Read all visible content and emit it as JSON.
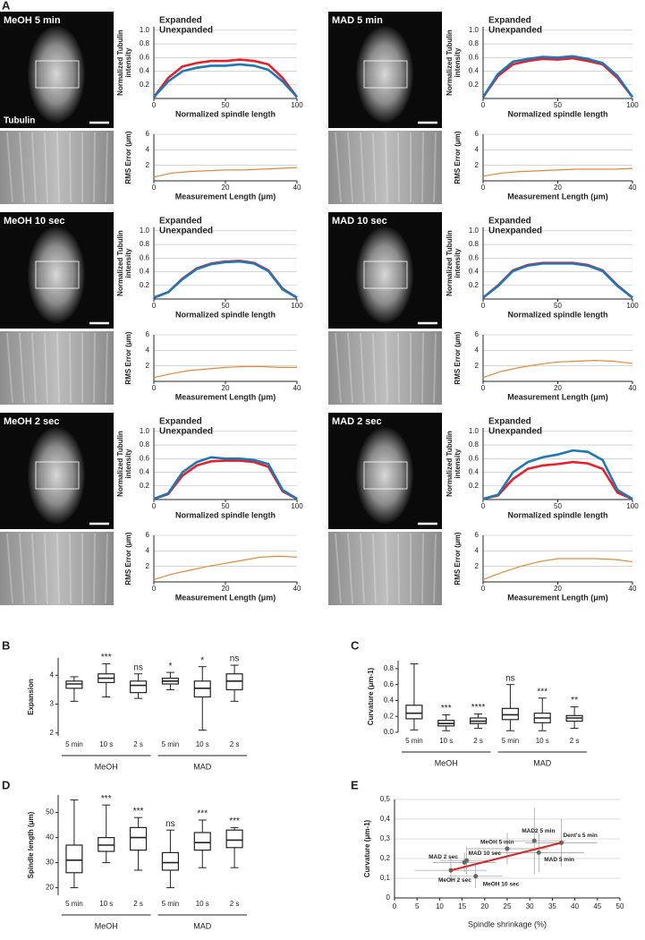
{
  "panel_labels": [
    "A",
    "B",
    "C",
    "D",
    "E"
  ],
  "images": [
    {
      "title": "MeOH 5 min",
      "stain": "Tubulin"
    },
    {
      "title": "MAD 5 min"
    },
    {
      "title": "MeOH 10 sec"
    },
    {
      "title": "MAD 10 sec"
    },
    {
      "title": "MeOH 2 sec"
    },
    {
      "title": "MAD 2 sec"
    }
  ],
  "chart_data": [
    {
      "type": "line",
      "xlabel": "Normalized spindle length",
      "ylabel": [
        "Normalized Tubulin",
        "intensity"
      ],
      "x": [
        0,
        10,
        20,
        30,
        40,
        50,
        60,
        70,
        80,
        90,
        100
      ],
      "series": [
        {
          "name": "Expanded",
          "color": "#e3222b",
          "values": [
            0.02,
            0.3,
            0.47,
            0.52,
            0.55,
            0.55,
            0.57,
            0.55,
            0.5,
            0.3,
            0.02
          ]
        },
        {
          "name": "Unexpanded",
          "color": "#1f77b4",
          "values": [
            0.02,
            0.25,
            0.4,
            0.45,
            0.48,
            0.48,
            0.5,
            0.48,
            0.42,
            0.25,
            0.02
          ]
        }
      ],
      "xlim": [
        0,
        100
      ],
      "ylim": [
        0,
        1.05
      ],
      "xticks": [
        0,
        50,
        100
      ],
      "yticks": [
        0.2,
        0.4,
        0.6,
        0.8,
        {
          "value": 1,
          "label": "1.0"
        }
      ],
      "grid": true
    },
    {
      "type": "line",
      "xlabel": "Normalized spindle length",
      "ylabel": [
        "Normalized Tubulin",
        "intensity"
      ],
      "x": [
        0,
        10,
        20,
        30,
        40,
        50,
        60,
        70,
        80,
        90,
        100
      ],
      "series": [
        {
          "name": "Expanded",
          "color": "#e3222b",
          "values": [
            0.02,
            0.33,
            0.5,
            0.55,
            0.58,
            0.57,
            0.59,
            0.55,
            0.5,
            0.3,
            0.02
          ]
        },
        {
          "name": "Unexpanded",
          "color": "#1f77b4",
          "values": [
            0.02,
            0.36,
            0.54,
            0.58,
            0.61,
            0.6,
            0.62,
            0.58,
            0.52,
            0.33,
            0.02
          ]
        }
      ],
      "xlim": [
        0,
        100
      ],
      "ylim": [
        0,
        1.05
      ],
      "xticks": [
        0,
        50,
        100
      ],
      "yticks": [
        0.2,
        0.4,
        0.6,
        0.8,
        {
          "value": 1,
          "label": "1.0"
        }
      ],
      "grid": true
    },
    {
      "type": "line",
      "xlabel": "Normalized spindle length",
      "ylabel": [
        "Normalized Tubulin",
        "intensity"
      ],
      "x": [
        0,
        10,
        20,
        30,
        40,
        50,
        60,
        70,
        80,
        90,
        100
      ],
      "series": [
        {
          "name": "Expanded",
          "color": "#e3222b",
          "values": [
            0.02,
            0.1,
            0.3,
            0.45,
            0.52,
            0.55,
            0.56,
            0.53,
            0.42,
            0.15,
            0.02
          ]
        },
        {
          "name": "Unexpanded",
          "color": "#1f77b4",
          "values": [
            0.02,
            0.1,
            0.29,
            0.44,
            0.51,
            0.54,
            0.55,
            0.52,
            0.41,
            0.14,
            0.02
          ]
        }
      ],
      "xlim": [
        0,
        100
      ],
      "ylim": [
        0,
        1.05
      ],
      "xticks": [
        0,
        50,
        100
      ],
      "yticks": [
        0.2,
        0.4,
        0.6,
        0.8,
        {
          "value": 1,
          "label": "1.0"
        }
      ],
      "grid": true
    },
    {
      "type": "line",
      "xlabel": "Normalized spindle length",
      "ylabel": [
        "Normalized Tubulin",
        "intensity"
      ],
      "x": [
        0,
        10,
        20,
        30,
        40,
        50,
        60,
        70,
        80,
        90,
        100
      ],
      "series": [
        {
          "name": "Expanded",
          "color": "#e3222b",
          "values": [
            0.02,
            0.2,
            0.42,
            0.5,
            0.53,
            0.53,
            0.53,
            0.5,
            0.42,
            0.2,
            0.02
          ]
        },
        {
          "name": "Unexpanded",
          "color": "#1f77b4",
          "values": [
            0.02,
            0.19,
            0.41,
            0.49,
            0.52,
            0.52,
            0.52,
            0.49,
            0.41,
            0.19,
            0.02
          ]
        }
      ],
      "xlim": [
        0,
        100
      ],
      "ylim": [
        0,
        1.05
      ],
      "xticks": [
        0,
        50,
        100
      ],
      "yticks": [
        0.2,
        0.4,
        0.6,
        0.8,
        {
          "value": 1,
          "label": "1.0"
        }
      ],
      "grid": true
    },
    {
      "type": "line",
      "xlabel": "Normalized spindle length",
      "ylabel": [
        "Normalized Tubulin",
        "intensity"
      ],
      "x": [
        0,
        10,
        20,
        30,
        40,
        50,
        60,
        70,
        80,
        90,
        100
      ],
      "series": [
        {
          "name": "Expanded",
          "color": "#e3222b",
          "values": [
            0.01,
            0.08,
            0.35,
            0.5,
            0.56,
            0.57,
            0.57,
            0.55,
            0.48,
            0.12,
            0.01
          ]
        },
        {
          "name": "Unexpanded",
          "color": "#1f77b4",
          "values": [
            0.01,
            0.09,
            0.4,
            0.55,
            0.62,
            0.6,
            0.6,
            0.58,
            0.52,
            0.14,
            0.01
          ]
        }
      ],
      "xlim": [
        0,
        100
      ],
      "ylim": [
        0,
        1.05
      ],
      "xticks": [
        0,
        50,
        100
      ],
      "yticks": [
        0.2,
        0.4,
        0.6,
        0.8,
        {
          "value": 1,
          "label": "1.0"
        }
      ],
      "grid": true
    },
    {
      "type": "line",
      "xlabel": "Normalized spindle length",
      "ylabel": [
        "Normalized Tubulin",
        "intensity"
      ],
      "x": [
        0,
        10,
        20,
        30,
        40,
        50,
        60,
        70,
        80,
        90,
        100
      ],
      "series": [
        {
          "name": "Expanded",
          "color": "#e3222b",
          "values": [
            0.01,
            0.06,
            0.3,
            0.45,
            0.5,
            0.52,
            0.55,
            0.53,
            0.45,
            0.1,
            0.01
          ]
        },
        {
          "name": "Unexpanded",
          "color": "#1f77b4",
          "values": [
            0.01,
            0.07,
            0.4,
            0.55,
            0.62,
            0.66,
            0.72,
            0.7,
            0.58,
            0.14,
            0.01
          ]
        }
      ],
      "xlim": [
        0,
        100
      ],
      "ylim": [
        0,
        1.05
      ],
      "xticks": [
        0,
        50,
        100
      ],
      "yticks": [
        0.2,
        0.4,
        0.6,
        0.8,
        {
          "value": 1,
          "label": "1.0"
        }
      ],
      "grid": true
    },
    {
      "type": "line",
      "xlabel": "Measurement Length (μm)",
      "ylabel": "RMS Error (μm)",
      "x": [
        0,
        5,
        10,
        15,
        20,
        25,
        30,
        35,
        40
      ],
      "series": [
        {
          "color": "#e08a3c",
          "values": [
            0.5,
            1.0,
            1.2,
            1.3,
            1.4,
            1.4,
            1.5,
            1.6,
            1.7
          ]
        }
      ],
      "xlim": [
        0,
        40
      ],
      "ylim": [
        0,
        6
      ],
      "xticks": [
        0,
        20,
        40
      ],
      "yticks": [
        2,
        4,
        6
      ],
      "grid": true
    },
    {
      "type": "line",
      "xlabel": "Measurement Length (μm)",
      "ylabel": "RMS Error (μm)",
      "x": [
        0,
        5,
        10,
        15,
        20,
        25,
        30,
        35,
        40
      ],
      "series": [
        {
          "color": "#e08a3c",
          "values": [
            0.6,
            1.0,
            1.2,
            1.3,
            1.4,
            1.5,
            1.5,
            1.5,
            1.6
          ]
        }
      ],
      "xlim": [
        0,
        40
      ],
      "ylim": [
        0,
        6
      ],
      "xticks": [
        0,
        20,
        40
      ],
      "yticks": [
        2,
        4,
        6
      ],
      "grid": true
    },
    {
      "type": "line",
      "xlabel": "Measurement Length (μm)",
      "ylabel": "RMS Error (μm)",
      "x": [
        0,
        5,
        10,
        15,
        20,
        25,
        30,
        35,
        40
      ],
      "series": [
        {
          "color": "#e08a3c",
          "values": [
            0.5,
            1.0,
            1.4,
            1.6,
            1.8,
            1.9,
            1.9,
            1.8,
            1.8
          ]
        }
      ],
      "xlim": [
        0,
        40
      ],
      "ylim": [
        0,
        6
      ],
      "xticks": [
        0,
        20,
        40
      ],
      "yticks": [
        2,
        4,
        6
      ],
      "grid": true
    },
    {
      "type": "line",
      "xlabel": "Measurement Length (μm)",
      "ylabel": "RMS Error (μm)",
      "x": [
        0,
        5,
        10,
        15,
        20,
        25,
        30,
        35,
        40
      ],
      "series": [
        {
          "color": "#e08a3c",
          "values": [
            0.5,
            1.3,
            1.8,
            2.2,
            2.5,
            2.6,
            2.7,
            2.6,
            2.3
          ]
        }
      ],
      "xlim": [
        0,
        40
      ],
      "ylim": [
        0,
        6
      ],
      "xticks": [
        0,
        20,
        40
      ],
      "yticks": [
        2,
        4,
        6
      ],
      "grid": true
    },
    {
      "type": "line",
      "xlabel": "Measurement Length (μm)",
      "ylabel": "RMS Error (μm)",
      "x": [
        0,
        5,
        10,
        15,
        20,
        25,
        30,
        35,
        40
      ],
      "series": [
        {
          "color": "#e08a3c",
          "values": [
            0.3,
            1.0,
            1.5,
            2.0,
            2.4,
            2.8,
            3.2,
            3.3,
            3.2
          ]
        }
      ],
      "xlim": [
        0,
        40
      ],
      "ylim": [
        0,
        6
      ],
      "xticks": [
        0,
        20,
        40
      ],
      "yticks": [
        2,
        4,
        6
      ],
      "grid": true
    },
    {
      "type": "line",
      "xlabel": "Measurement Length (μm)",
      "ylabel": "RMS Error (μm)",
      "x": [
        0,
        5,
        10,
        15,
        20,
        25,
        30,
        35,
        40
      ],
      "series": [
        {
          "color": "#e08a3c",
          "values": [
            0.3,
            1.2,
            2.0,
            2.6,
            3.0,
            3.0,
            3.0,
            2.9,
            2.6
          ]
        }
      ],
      "xlim": [
        0,
        40
      ],
      "ylim": [
        0,
        6
      ],
      "xticks": [
        0,
        20,
        40
      ],
      "yticks": [
        2,
        4,
        6
      ],
      "grid": true
    },
    {
      "type": "box",
      "ylabel": "Expansion",
      "categories": [
        "5 min",
        "10 s",
        "2 s",
        "5 min",
        "10 s",
        "2 s"
      ],
      "groups": [
        "MeOH",
        "MAD"
      ],
      "boxes": [
        {
          "min": 3.1,
          "q1": 3.55,
          "median": 3.7,
          "q3": 3.8,
          "max": 3.95
        },
        {
          "min": 3.25,
          "q1": 3.75,
          "median": 3.9,
          "q3": 4.05,
          "max": 4.4
        },
        {
          "min": 3.2,
          "q1": 3.4,
          "median": 3.65,
          "q3": 3.8,
          "max": 4.05
        },
        {
          "min": 3.5,
          "q1": 3.7,
          "median": 3.8,
          "q3": 3.9,
          "max": 4.1
        },
        {
          "min": 2.1,
          "q1": 3.25,
          "median": 3.55,
          "q3": 3.8,
          "max": 4.3
        },
        {
          "min": 3.1,
          "q1": 3.5,
          "median": 3.8,
          "q3": 4.05,
          "max": 4.35
        }
      ],
      "annotations": [
        null,
        "***",
        "ns",
        "*",
        "*",
        "ns"
      ],
      "ylim": [
        1.9,
        4.6
      ],
      "yticks": [
        2,
        3,
        4
      ]
    },
    {
      "type": "box",
      "ylabel": "Curvature (μm-1)",
      "categories": [
        "5 min",
        "10 s",
        "2 s",
        "5 min",
        "10 s",
        "2 s"
      ],
      "groups": [
        "MeOH",
        "MAD"
      ],
      "boxes": [
        {
          "min": 0.03,
          "q1": 0.17,
          "median": 0.24,
          "q3": 0.34,
          "max": 0.86
        },
        {
          "min": 0.02,
          "q1": 0.08,
          "median": 0.11,
          "q3": 0.15,
          "max": 0.22
        },
        {
          "min": 0.05,
          "q1": 0.11,
          "median": 0.14,
          "q3": 0.18,
          "max": 0.23
        },
        {
          "min": 0.02,
          "q1": 0.16,
          "median": 0.22,
          "q3": 0.3,
          "max": 0.6
        },
        {
          "min": 0.02,
          "q1": 0.12,
          "median": 0.18,
          "q3": 0.24,
          "max": 0.43
        },
        {
          "min": 0.05,
          "q1": 0.14,
          "median": 0.18,
          "q3": 0.21,
          "max": 0.32
        }
      ],
      "annotations": [
        null,
        "***",
        "****",
        "ns",
        "***",
        "**"
      ],
      "ylim": [
        0,
        0.9
      ],
      "yticks": [
        {
          "value": 0,
          "label": "0.0"
        },
        0.2,
        0.4,
        0.6,
        0.8
      ]
    },
    {
      "type": "box",
      "ylabel": "Spindle length (μm)",
      "categories": [
        "5 min",
        "10 s",
        "2 s",
        "5 min",
        "10 s",
        "2 s"
      ],
      "groups": [
        "MeOH",
        "MAD"
      ],
      "boxes": [
        {
          "min": 20,
          "q1": 26,
          "median": 31,
          "q3": 37,
          "max": 55
        },
        {
          "min": 30,
          "q1": 34.5,
          "median": 37,
          "q3": 40,
          "max": 53
        },
        {
          "min": 27,
          "q1": 35,
          "median": 40,
          "q3": 44,
          "max": 48
        },
        {
          "min": 20,
          "q1": 27,
          "median": 30,
          "q3": 34,
          "max": 43
        },
        {
          "min": 28,
          "q1": 35,
          "median": 38,
          "q3": 42,
          "max": 47
        },
        {
          "min": 28,
          "q1": 36,
          "median": 39,
          "q3": 43,
          "max": 44
        }
      ],
      "annotations": [
        null,
        "***",
        "***",
        "ns",
        "***",
        "***"
      ],
      "ylim": [
        17,
        57
      ],
      "yticks": [
        20,
        30,
        40,
        50
      ]
    },
    {
      "type": "scatter",
      "xlabel": "Spindle shrinkage (%)",
      "ylabel": "Curvature (μm-1)",
      "points": [
        {
          "label": "MeOH 5 min",
          "x": 25,
          "y": 0.25,
          "xerr": 9,
          "yerr": 0.08
        },
        {
          "label": "MAD2 5 min",
          "x": 31,
          "y": 0.29,
          "xerr": 7,
          "yerr": 0.17
        },
        {
          "label": "Dent's 5 min",
          "x": 37,
          "y": 0.28,
          "xerr": 8,
          "yerr": 0.12
        },
        {
          "label": "MAD 5 min",
          "x": 32,
          "y": 0.23,
          "xerr": 10,
          "yerr": 0.1
        },
        {
          "label": "MAD 10 sec",
          "x": 16,
          "y": 0.19,
          "xerr": 6,
          "yerr": 0.07
        },
        {
          "label": "MAD 2 sec",
          "x": 15.5,
          "y": 0.18,
          "xerr": 7,
          "yerr": 0.05
        },
        {
          "label": "MeOH 2 sec",
          "x": 12.5,
          "y": 0.14,
          "xerr": 8,
          "yerr": 0.06
        },
        {
          "label": "MeOH 10 sec",
          "x": 18,
          "y": 0.11,
          "xerr": 6,
          "yerr": 0.06
        }
      ],
      "fit": {
        "color": "#d62728",
        "x": [
          12.5,
          37
        ],
        "values": [
          0.14,
          0.28
        ]
      },
      "xlim": [
        0,
        50
      ],
      "ylim": [
        0,
        0.5
      ],
      "xticks": [
        0,
        5,
        10,
        15,
        20,
        25,
        30,
        35,
        40,
        45,
        50
      ],
      "yticks": [
        0,
        {
          "value": 0.1,
          "label": "0,1"
        },
        {
          "value": 0.2,
          "label": "0,2"
        },
        {
          "value": 0.3,
          "label": "0,3"
        },
        {
          "value": 0.4,
          "label": "0,4"
        },
        {
          "value": 0.5,
          "label": "0,5"
        }
      ],
      "grid": true
    }
  ]
}
